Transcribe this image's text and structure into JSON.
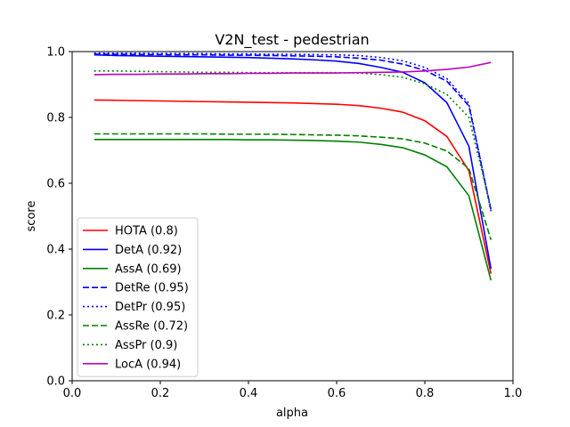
{
  "chart_data": {
    "type": "line",
    "title": "V2N_test - pedestrian",
    "xlabel": "alpha",
    "ylabel": "score",
    "xlim": [
      0.0,
      1.0
    ],
    "ylim": [
      0.0,
      1.0
    ],
    "xticks": [
      "0.0",
      "0.2",
      "0.4",
      "0.6",
      "0.8",
      "1.0"
    ],
    "yticks": [
      "0.0",
      "0.2",
      "0.4",
      "0.6",
      "0.8",
      "1.0"
    ],
    "grid": false,
    "legend_position": "lower-left",
    "x": [
      0.05,
      0.1,
      0.15,
      0.2,
      0.25,
      0.3,
      0.35,
      0.4,
      0.45,
      0.5,
      0.55,
      0.6,
      0.65,
      0.7,
      0.75,
      0.8,
      0.85,
      0.9,
      0.95
    ],
    "series": [
      {
        "name": "HOTA (0.8)",
        "color": "#ff0000",
        "dash": "solid",
        "values": [
          0.853,
          0.852,
          0.851,
          0.85,
          0.849,
          0.848,
          0.847,
          0.846,
          0.845,
          0.844,
          0.842,
          0.84,
          0.836,
          0.828,
          0.816,
          0.79,
          0.742,
          0.638,
          0.325
        ]
      },
      {
        "name": "DetA (0.92)",
        "color": "#0000ff",
        "dash": "solid",
        "values": [
          0.99,
          0.988,
          0.987,
          0.986,
          0.985,
          0.984,
          0.983,
          0.982,
          0.98,
          0.978,
          0.975,
          0.971,
          0.964,
          0.952,
          0.937,
          0.905,
          0.845,
          0.712,
          0.34
        ]
      },
      {
        "name": "AssA (0.69)",
        "color": "#008000",
        "dash": "solid",
        "values": [
          0.733,
          0.733,
          0.733,
          0.733,
          0.733,
          0.733,
          0.733,
          0.732,
          0.732,
          0.731,
          0.73,
          0.728,
          0.725,
          0.718,
          0.708,
          0.686,
          0.65,
          0.562,
          0.305
        ]
      },
      {
        "name": "DetRe (0.95)",
        "color": "#0000ff",
        "dash": "dashed",
        "values": [
          0.992,
          0.992,
          0.991,
          0.991,
          0.99,
          0.99,
          0.989,
          0.989,
          0.988,
          0.987,
          0.986,
          0.984,
          0.98,
          0.974,
          0.962,
          0.943,
          0.91,
          0.835,
          0.52
        ]
      },
      {
        "name": "DetPr (0.95)",
        "color": "#0000ff",
        "dash": "dotted",
        "values": [
          0.995,
          0.995,
          0.995,
          0.994,
          0.994,
          0.994,
          0.993,
          0.993,
          0.992,
          0.992,
          0.991,
          0.99,
          0.988,
          0.982,
          0.972,
          0.952,
          0.918,
          0.842,
          0.515
        ]
      },
      {
        "name": "AssRe (0.72)",
        "color": "#008000",
        "dash": "dashed",
        "values": [
          0.75,
          0.75,
          0.75,
          0.75,
          0.75,
          0.75,
          0.749,
          0.749,
          0.749,
          0.748,
          0.747,
          0.746,
          0.744,
          0.74,
          0.735,
          0.722,
          0.698,
          0.645,
          0.428
        ]
      },
      {
        "name": "AssPr (0.9)",
        "color": "#008000",
        "dash": "dotted",
        "values": [
          0.941,
          0.941,
          0.94,
          0.939,
          0.938,
          0.937,
          0.937,
          0.936,
          0.936,
          0.936,
          0.936,
          0.936,
          0.935,
          0.93,
          0.922,
          0.902,
          0.87,
          0.8,
          0.525
        ]
      },
      {
        "name": "LocA (0.94)",
        "color": "#bf00bf",
        "dash": "solid",
        "values": [
          0.93,
          0.931,
          0.931,
          0.932,
          0.932,
          0.933,
          0.933,
          0.934,
          0.934,
          0.935,
          0.935,
          0.935,
          0.936,
          0.937,
          0.938,
          0.941,
          0.946,
          0.953,
          0.967
        ]
      }
    ]
  }
}
